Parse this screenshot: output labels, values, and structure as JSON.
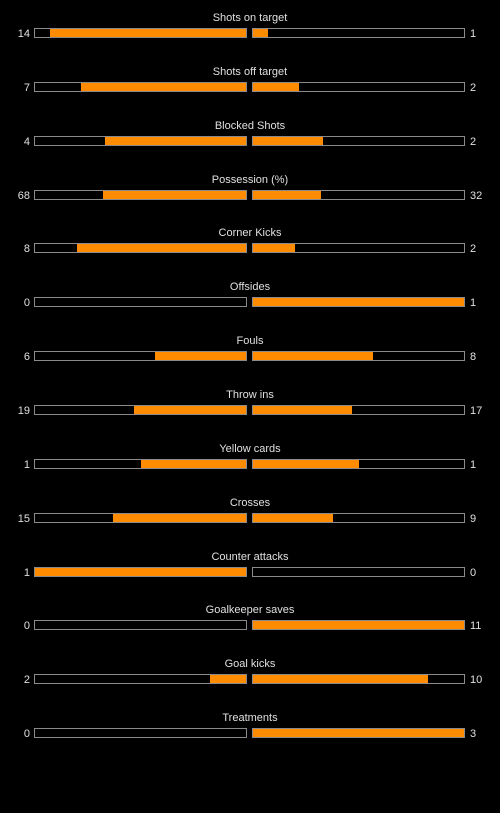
{
  "colors": {
    "background": "#000000",
    "bar_fill": "#ff8c00",
    "bar_border": "#8a8a8a",
    "text": "#e0e0e0"
  },
  "stats": [
    {
      "label": "Shots on target",
      "home": "14",
      "away": "1",
      "home_fill": 0.93,
      "away_fill": 0.07
    },
    {
      "label": "Shots off target",
      "home": "7",
      "away": "2",
      "home_fill": 0.78,
      "away_fill": 0.22
    },
    {
      "label": "Blocked Shots",
      "home": "4",
      "away": "2",
      "home_fill": 0.67,
      "away_fill": 0.33
    },
    {
      "label": "Possession (%)",
      "home": "68",
      "away": "32",
      "home_fill": 0.68,
      "away_fill": 0.32
    },
    {
      "label": "Corner Kicks",
      "home": "8",
      "away": "2",
      "home_fill": 0.8,
      "away_fill": 0.2
    },
    {
      "label": "Offsides",
      "home": "0",
      "away": "1",
      "home_fill": 0.0,
      "away_fill": 1.0
    },
    {
      "label": "Fouls",
      "home": "6",
      "away": "8",
      "home_fill": 0.43,
      "away_fill": 0.57
    },
    {
      "label": "Throw ins",
      "home": "19",
      "away": "17",
      "home_fill": 0.53,
      "away_fill": 0.47
    },
    {
      "label": "Yellow cards",
      "home": "1",
      "away": "1",
      "home_fill": 0.5,
      "away_fill": 0.5
    },
    {
      "label": "Crosses",
      "home": "15",
      "away": "9",
      "home_fill": 0.63,
      "away_fill": 0.38
    },
    {
      "label": "Counter attacks",
      "home": "1",
      "away": "0",
      "home_fill": 1.0,
      "away_fill": 0.0
    },
    {
      "label": "Goalkeeper saves",
      "home": "0",
      "away": "11",
      "home_fill": 0.0,
      "away_fill": 1.0
    },
    {
      "label": "Goal kicks",
      "home": "2",
      "away": "10",
      "home_fill": 0.17,
      "away_fill": 0.83
    },
    {
      "label": "Treatments",
      "home": "0",
      "away": "3",
      "home_fill": 0.0,
      "away_fill": 1.0
    }
  ]
}
